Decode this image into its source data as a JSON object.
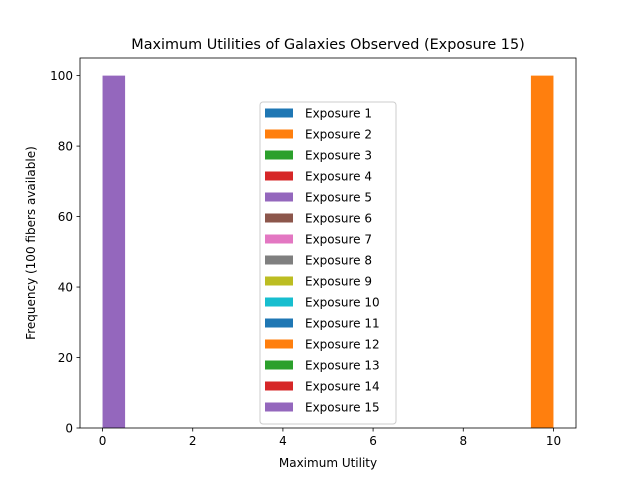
{
  "chart_data": {
    "type": "bar",
    "title": "Maximum Utilities of Galaxies Observed (Exposure 15)",
    "xlabel": "Maximum Utility",
    "ylabel": "Frequency (100 fibers available)",
    "xlim": [
      -0.5,
      10.5
    ],
    "ylim": [
      0,
      105
    ],
    "xticks": [
      0,
      2,
      4,
      6,
      8,
      10
    ],
    "yticks": [
      0,
      20,
      40,
      60,
      80,
      100
    ],
    "bin_width": 0.5,
    "grid": false,
    "legend_position": "center",
    "series": [
      {
        "name": "Exposure 1",
        "color": "#1f77b4",
        "bars": []
      },
      {
        "name": "Exposure 2",
        "color": "#ff7f0e",
        "bars": []
      },
      {
        "name": "Exposure 3",
        "color": "#2ca02c",
        "bars": []
      },
      {
        "name": "Exposure 4",
        "color": "#d62728",
        "bars": []
      },
      {
        "name": "Exposure 5",
        "color": "#9467bd",
        "bars": []
      },
      {
        "name": "Exposure 6",
        "color": "#8c564b",
        "bars": []
      },
      {
        "name": "Exposure 7",
        "color": "#e377c2",
        "bars": []
      },
      {
        "name": "Exposure 8",
        "color": "#7f7f7f",
        "bars": []
      },
      {
        "name": "Exposure 9",
        "color": "#bcbd22",
        "bars": []
      },
      {
        "name": "Exposure 10",
        "color": "#17becf",
        "bars": []
      },
      {
        "name": "Exposure 11",
        "color": "#1f77b4",
        "bars": []
      },
      {
        "name": "Exposure 12",
        "color": "#ff7f0e",
        "bars": [
          {
            "x": 9.5,
            "value": 100
          }
        ]
      },
      {
        "name": "Exposure 13",
        "color": "#2ca02c",
        "bars": []
      },
      {
        "name": "Exposure 14",
        "color": "#d62728",
        "bars": []
      },
      {
        "name": "Exposure 15",
        "color": "#9467bd",
        "bars": [
          {
            "x": 0,
            "value": 100
          }
        ]
      }
    ]
  }
}
